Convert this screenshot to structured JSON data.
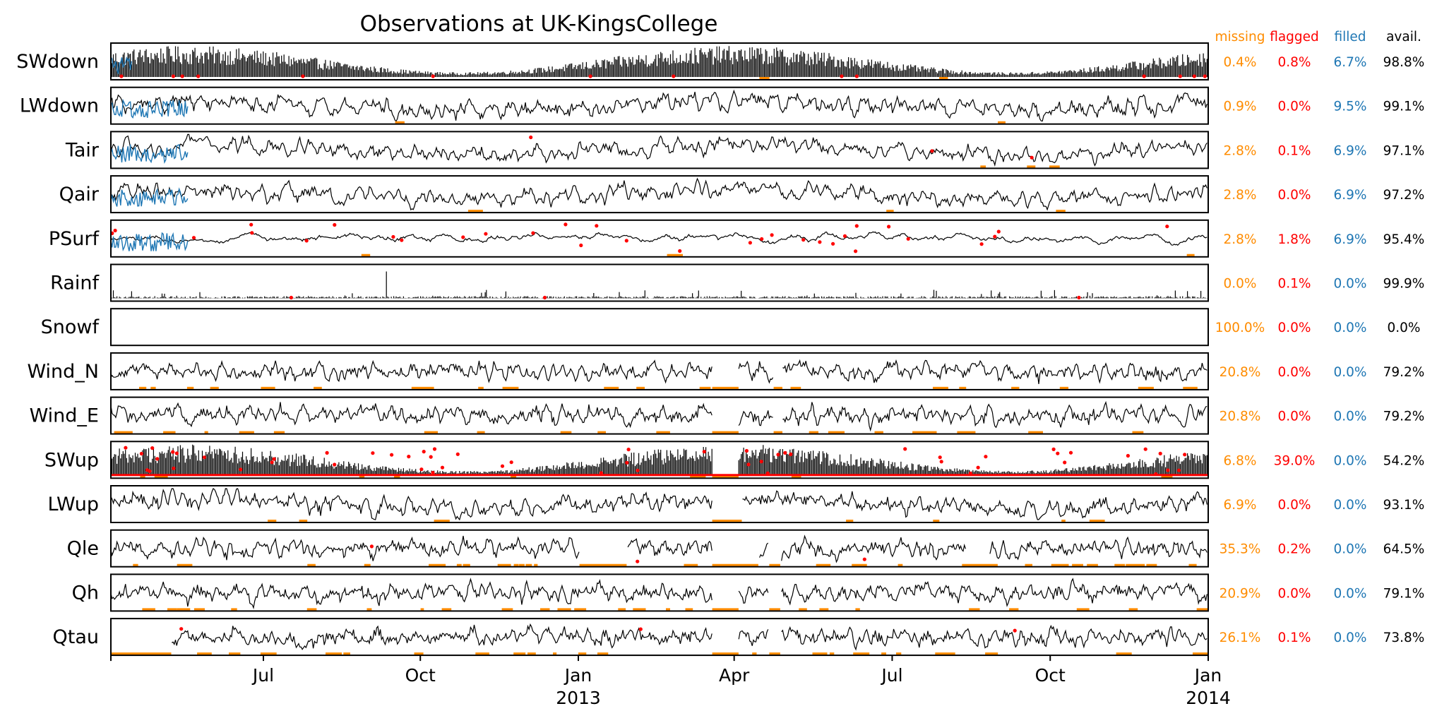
{
  "chart_data": {
    "type": "line",
    "title": "Observations at UK-KingsCollege",
    "x_axis": {
      "ticks": [
        "Jul",
        "Oct",
        "Jan",
        "Apr",
        "Jul",
        "Oct",
        "Jan"
      ],
      "year_labels": [
        {
          "under_tick": 2,
          "text": "2013"
        },
        {
          "under_tick": 6,
          "text": "2014"
        }
      ]
    },
    "column_headers": {
      "missing": "missing",
      "flagged": "flagged",
      "filled": "filled",
      "avail": "avail."
    },
    "legend_colors": {
      "observed": "#000000",
      "missing": "#ff8c00",
      "flagged": "#ff0000",
      "filled": "#1f77b4"
    },
    "series": [
      {
        "name": "SWdown",
        "missing": "0.4%",
        "flagged": "0.8%",
        "filled": "6.7%",
        "avail": "98.8%"
      },
      {
        "name": "LWdown",
        "missing": "0.9%",
        "flagged": "0.0%",
        "filled": "9.5%",
        "avail": "99.1%"
      },
      {
        "name": "Tair",
        "missing": "2.8%",
        "flagged": "0.1%",
        "filled": "6.9%",
        "avail": "97.1%"
      },
      {
        "name": "Qair",
        "missing": "2.8%",
        "flagged": "0.0%",
        "filled": "6.9%",
        "avail": "97.2%"
      },
      {
        "name": "PSurf",
        "missing": "2.8%",
        "flagged": "1.8%",
        "filled": "6.9%",
        "avail": "95.4%"
      },
      {
        "name": "Rainf",
        "missing": "0.0%",
        "flagged": "0.1%",
        "filled": "0.0%",
        "avail": "99.9%"
      },
      {
        "name": "Snowf",
        "missing": "100.0%",
        "flagged": "0.0%",
        "filled": "0.0%",
        "avail": "0.0%"
      },
      {
        "name": "Wind_N",
        "missing": "20.8%",
        "flagged": "0.0%",
        "filled": "0.0%",
        "avail": "79.2%"
      },
      {
        "name": "Wind_E",
        "missing": "20.8%",
        "flagged": "0.0%",
        "filled": "0.0%",
        "avail": "79.2%"
      },
      {
        "name": "SWup",
        "missing": "6.8%",
        "flagged": "39.0%",
        "filled": "0.0%",
        "avail": "54.2%"
      },
      {
        "name": "LWup",
        "missing": "6.9%",
        "flagged": "0.0%",
        "filled": "0.0%",
        "avail": "93.1%"
      },
      {
        "name": "Qle",
        "missing": "35.3%",
        "flagged": "0.2%",
        "filled": "0.0%",
        "avail": "64.5%"
      },
      {
        "name": "Qh",
        "missing": "20.9%",
        "flagged": "0.0%",
        "filled": "0.0%",
        "avail": "79.1%"
      },
      {
        "name": "Qtau",
        "missing": "26.1%",
        "flagged": "0.1%",
        "filled": "0.0%",
        "avail": "73.8%"
      }
    ]
  }
}
